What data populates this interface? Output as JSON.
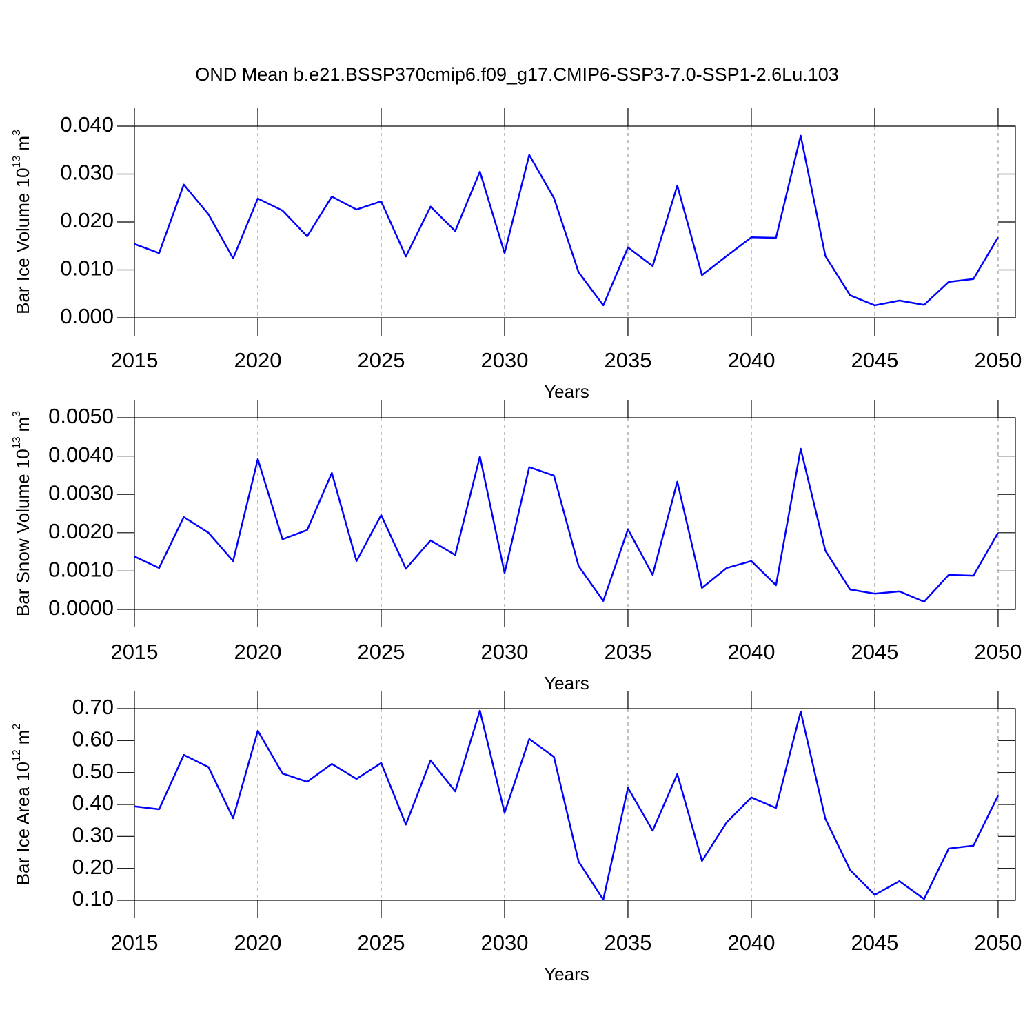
{
  "title": "OND Mean b.e21.BSSP370cmip6.f09_g17.CMIP6-SSP3-7.0-SSP1-2.6Lu.103",
  "chart_data": [
    {
      "type": "line",
      "color": "#0000ff",
      "xlabel": "Years",
      "ylabel": {
        "text": "Bar Ice Volume 10",
        "exp": "13",
        "unit": "m",
        "unit_exp": "3"
      },
      "x": [
        2015,
        2016,
        2017,
        2018,
        2019,
        2020,
        2021,
        2022,
        2023,
        2024,
        2025,
        2026,
        2027,
        2028,
        2029,
        2030,
        2031,
        2032,
        2033,
        2034,
        2035,
        2036,
        2037,
        2038,
        2039,
        2040,
        2041,
        2042,
        2043,
        2044,
        2045,
        2046,
        2047,
        2048,
        2049,
        2050
      ],
      "values": [
        0.0154,
        0.0135,
        0.0278,
        0.0216,
        0.0124,
        0.0249,
        0.0224,
        0.017,
        0.0253,
        0.0226,
        0.0243,
        0.0128,
        0.0232,
        0.0181,
        0.0305,
        0.0135,
        0.034,
        0.025,
        0.0095,
        0.0026,
        0.0147,
        0.0108,
        0.0276,
        0.0089,
        0.0129,
        0.0168,
        0.0167,
        0.038,
        0.0129,
        0.0047,
        0.0026,
        0.0036,
        0.0027,
        0.0075,
        0.0081,
        0.0168
      ],
      "xlim": [
        2015,
        2050.7
      ],
      "xticks": [
        2015,
        2020,
        2025,
        2030,
        2035,
        2040,
        2045,
        2050
      ],
      "xgrid": true,
      "ylim": [
        0,
        0.04
      ],
      "yticks": [
        {
          "value": 0,
          "label": "0.000"
        },
        {
          "value": 0.01,
          "label": "0.010"
        },
        {
          "value": 0.02,
          "label": "0.020"
        },
        {
          "value": 0.03,
          "label": "0.030"
        },
        {
          "value": 0.04,
          "label": "0.040"
        }
      ]
    },
    {
      "type": "line",
      "color": "#0000ff",
      "xlabel": "Years",
      "ylabel": {
        "text": "Bar Snow Volume 10",
        "exp": "13",
        "unit": "m",
        "unit_exp": "3"
      },
      "x": [
        2015,
        2016,
        2017,
        2018,
        2019,
        2020,
        2021,
        2022,
        2023,
        2024,
        2025,
        2026,
        2027,
        2028,
        2029,
        2030,
        2031,
        2032,
        2033,
        2034,
        2035,
        2036,
        2037,
        2038,
        2039,
        2040,
        2041,
        2042,
        2043,
        2044,
        2045,
        2046,
        2047,
        2048,
        2049,
        2050
      ],
      "values": [
        0.00138,
        0.00108,
        0.00241,
        0.002,
        0.00126,
        0.00392,
        0.00183,
        0.00207,
        0.00356,
        0.00126,
        0.00246,
        0.00106,
        0.0018,
        0.00142,
        0.00399,
        0.00095,
        0.00371,
        0.00349,
        0.00113,
        0.00022,
        0.00209,
        0.0009,
        0.00333,
        0.00056,
        0.00108,
        0.00126,
        0.00063,
        0.00419,
        0.00153,
        0.00052,
        0.00041,
        0.00047,
        0.0002,
        0.0009,
        0.00088,
        0.002
      ],
      "xlim": [
        2015,
        2050.7
      ],
      "xticks": [
        2015,
        2020,
        2025,
        2030,
        2035,
        2040,
        2045,
        2050
      ],
      "xgrid": true,
      "ylim": [
        0,
        0.005
      ],
      "yticks": [
        {
          "value": 0,
          "label": "0.0000"
        },
        {
          "value": 0.001,
          "label": "0.0010"
        },
        {
          "value": 0.002,
          "label": "0.0020"
        },
        {
          "value": 0.003,
          "label": "0.0030"
        },
        {
          "value": 0.004,
          "label": "0.0040"
        },
        {
          "value": 0.005,
          "label": "0.0050"
        }
      ]
    },
    {
      "type": "line",
      "color": "#0000ff",
      "xlabel": "Years",
      "ylabel": {
        "text": "Bar Ice Area 10",
        "exp": "12",
        "unit": "m",
        "unit_exp": "2"
      },
      "x": [
        2015,
        2016,
        2017,
        2018,
        2019,
        2020,
        2021,
        2022,
        2023,
        2024,
        2025,
        2026,
        2027,
        2028,
        2029,
        2030,
        2031,
        2032,
        2033,
        2034,
        2035,
        2036,
        2037,
        2038,
        2039,
        2040,
        2041,
        2042,
        2043,
        2044,
        2045,
        2046,
        2047,
        2048,
        2049,
        2050
      ],
      "values": [
        0.394,
        0.385,
        0.555,
        0.517,
        0.357,
        0.631,
        0.497,
        0.471,
        0.527,
        0.48,
        0.53,
        0.337,
        0.538,
        0.441,
        0.694,
        0.374,
        0.605,
        0.549,
        0.221,
        0.102,
        0.452,
        0.318,
        0.495,
        0.223,
        0.344,
        0.422,
        0.389,
        0.691,
        0.355,
        0.195,
        0.117,
        0.16,
        0.104,
        0.262,
        0.271,
        0.428
      ],
      "xlim": [
        2015,
        2050.7
      ],
      "xticks": [
        2015,
        2020,
        2025,
        2030,
        2035,
        2040,
        2045,
        2050
      ],
      "xgrid": true,
      "ylim": [
        0.1,
        0.7
      ],
      "yticks": [
        {
          "value": 0.1,
          "label": "0.10"
        },
        {
          "value": 0.2,
          "label": "0.20"
        },
        {
          "value": 0.3,
          "label": "0.30"
        },
        {
          "value": 0.4,
          "label": "0.40"
        },
        {
          "value": 0.5,
          "label": "0.50"
        },
        {
          "value": 0.6,
          "label": "0.60"
        },
        {
          "value": 0.7,
          "label": "0.70"
        }
      ]
    }
  ]
}
